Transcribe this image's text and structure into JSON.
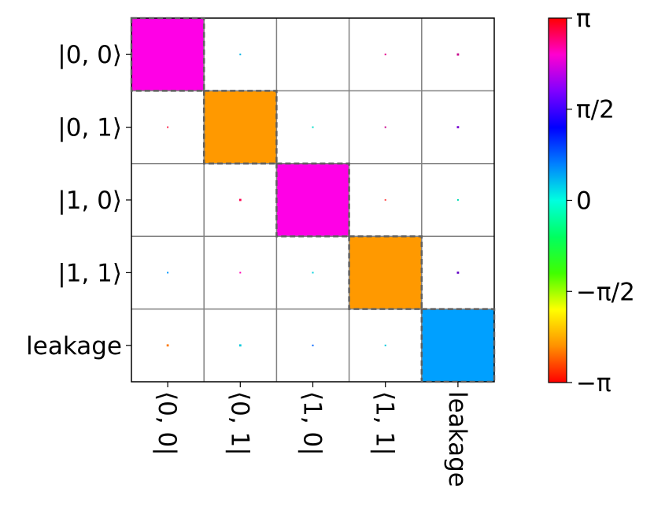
{
  "chart_data": {
    "type": "heatmap",
    "title": "",
    "row_labels": [
      "|0, 0⟩",
      "|0, 1⟩",
      "|1, 0⟩",
      "|1, 1⟩",
      "leakage"
    ],
    "col_labels": [
      "⟨0, 0|",
      "⟨0, 1|",
      "⟨1, 0|",
      "⟨1, 1|",
      "leakage"
    ],
    "cells": [
      [
        {
          "magnitude": 1.0,
          "phase_color": "#ff00e6"
        },
        {
          "magnitude": 0.02,
          "phase_color": "#00b4e6"
        },
        {
          "magnitude": 0.0,
          "phase_color": "#ffffff"
        },
        {
          "magnitude": 0.02,
          "phase_color": "#e6008c"
        },
        {
          "magnitude": 0.03,
          "phase_color": "#c8008c"
        }
      ],
      [
        {
          "magnitude": 0.02,
          "phase_color": "#ff2850"
        },
        {
          "magnitude": 1.0,
          "phase_color": "#ff9900"
        },
        {
          "magnitude": 0.02,
          "phase_color": "#00dcc8"
        },
        {
          "magnitude": 0.02,
          "phase_color": "#c8008c"
        },
        {
          "magnitude": 0.03,
          "phase_color": "#7800d2"
        }
      ],
      [
        {
          "magnitude": 0.0,
          "phase_color": "#ffffff"
        },
        {
          "magnitude": 0.03,
          "phase_color": "#ff0050"
        },
        {
          "magnitude": 1.0,
          "phase_color": "#ff00e6"
        },
        {
          "magnitude": 0.02,
          "phase_color": "#ff5050"
        },
        {
          "magnitude": 0.02,
          "phase_color": "#00dcb4"
        }
      ],
      [
        {
          "magnitude": 0.02,
          "phase_color": "#0096ff"
        },
        {
          "magnitude": 0.02,
          "phase_color": "#ff00b4"
        },
        {
          "magnitude": 0.02,
          "phase_color": "#00d2dc"
        },
        {
          "magnitude": 1.0,
          "phase_color": "#ff9900"
        },
        {
          "magnitude": 0.03,
          "phase_color": "#6400c8"
        }
      ],
      [
        {
          "magnitude": 0.03,
          "phase_color": "#ff7800"
        },
        {
          "magnitude": 0.03,
          "phase_color": "#00c8dc"
        },
        {
          "magnitude": 0.02,
          "phase_color": "#0064ff"
        },
        {
          "magnitude": 0.02,
          "phase_color": "#00c8dc"
        },
        {
          "magnitude": 1.0,
          "phase_color": "#00a0ff"
        }
      ]
    ],
    "highlighted_cells": [
      [
        0,
        0
      ],
      [
        1,
        1
      ],
      [
        2,
        2
      ],
      [
        3,
        3
      ],
      [
        4,
        4
      ]
    ],
    "grid": true,
    "colorbar": {
      "label": "",
      "range": [
        -3.14159,
        3.14159
      ],
      "tick_labels": [
        "π",
        "π/2",
        "0",
        "−π/2",
        "−π"
      ],
      "tick_values": [
        3.14159,
        1.5708,
        0,
        -1.5708,
        -3.14159
      ],
      "colors_top_to_bottom": [
        "#ff0000",
        "#ff00d0",
        "#8000ff",
        "#0000ff",
        "#0080ff",
        "#00ffe0",
        "#00ff60",
        "#40ff00",
        "#ffff00",
        "#ff9000",
        "#ff0000"
      ]
    }
  }
}
